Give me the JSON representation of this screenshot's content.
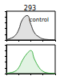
{
  "chart_data": [
    {
      "type": "line",
      "title": "293",
      "annotations": [
        "control"
      ],
      "log": "x",
      "grid": false,
      "tick_labels": false,
      "xlim": [
        1,
        10000
      ],
      "ylim": [
        0,
        100
      ],
      "x": [
        1,
        2,
        5,
        10,
        20,
        50,
        100,
        200,
        500,
        1000,
        2000,
        5000,
        10000
      ],
      "series": [
        {
          "color": "#333333",
          "values": [
            2,
            5,
            15,
            35,
            70,
            85,
            55,
            25,
            10,
            4,
            2,
            1,
            0
          ]
        }
      ]
    },
    {
      "type": "line",
      "log": "x",
      "grid": false,
      "tick_labels": false,
      "xlim": [
        1,
        10000
      ],
      "ylim": [
        0,
        100
      ],
      "x": [
        1,
        2,
        5,
        10,
        20,
        50,
        100,
        200,
        500,
        1000,
        2000,
        5000,
        10000
      ],
      "series": [
        {
          "color": "#3cb043",
          "values": [
            1,
            3,
            8,
            20,
            45,
            70,
            80,
            50,
            20,
            8,
            3,
            1,
            0
          ]
        }
      ]
    }
  ]
}
